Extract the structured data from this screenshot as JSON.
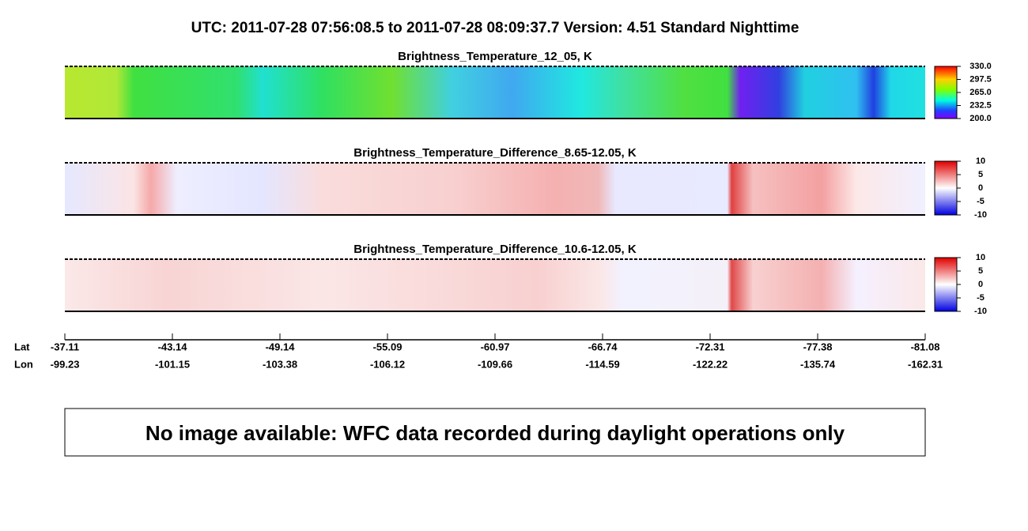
{
  "header": {
    "title": "UTC:  2011-07-28   07:56:08.5  to  2011-07-28   08:09:37.7    Version: 4.51  Standard Nighttime"
  },
  "panels": [
    {
      "title": "Brightness_Temperature_12_05, K",
      "colorbar_ticks": [
        "330.0",
        "297.5",
        "265.0",
        "232.5",
        "200.0"
      ]
    },
    {
      "title": "Brightness_Temperature_Difference_8.65-12.05, K",
      "colorbar_ticks": [
        "10",
        "5",
        "0",
        "-5",
        "-10"
      ]
    },
    {
      "title": "Brightness_Temperature_Difference_10.6-12.05, K",
      "colorbar_ticks": [
        "10",
        "5",
        "0",
        "-5",
        "-10"
      ]
    }
  ],
  "axis": {
    "lat_label": "Lat",
    "lon_label": "Lon",
    "lat": [
      "-37.11",
      "-43.14",
      "-49.14",
      "-55.09",
      "-60.97",
      "-66.74",
      "-72.31",
      "-77.38",
      "-81.08"
    ],
    "lon": [
      "-99.23",
      "-101.15",
      "-103.38",
      "-106.12",
      "-109.66",
      "-114.59",
      "-122.22",
      "-135.74",
      "-162.31"
    ]
  },
  "message": "No image available: WFC data recorded during daylight operations only"
}
